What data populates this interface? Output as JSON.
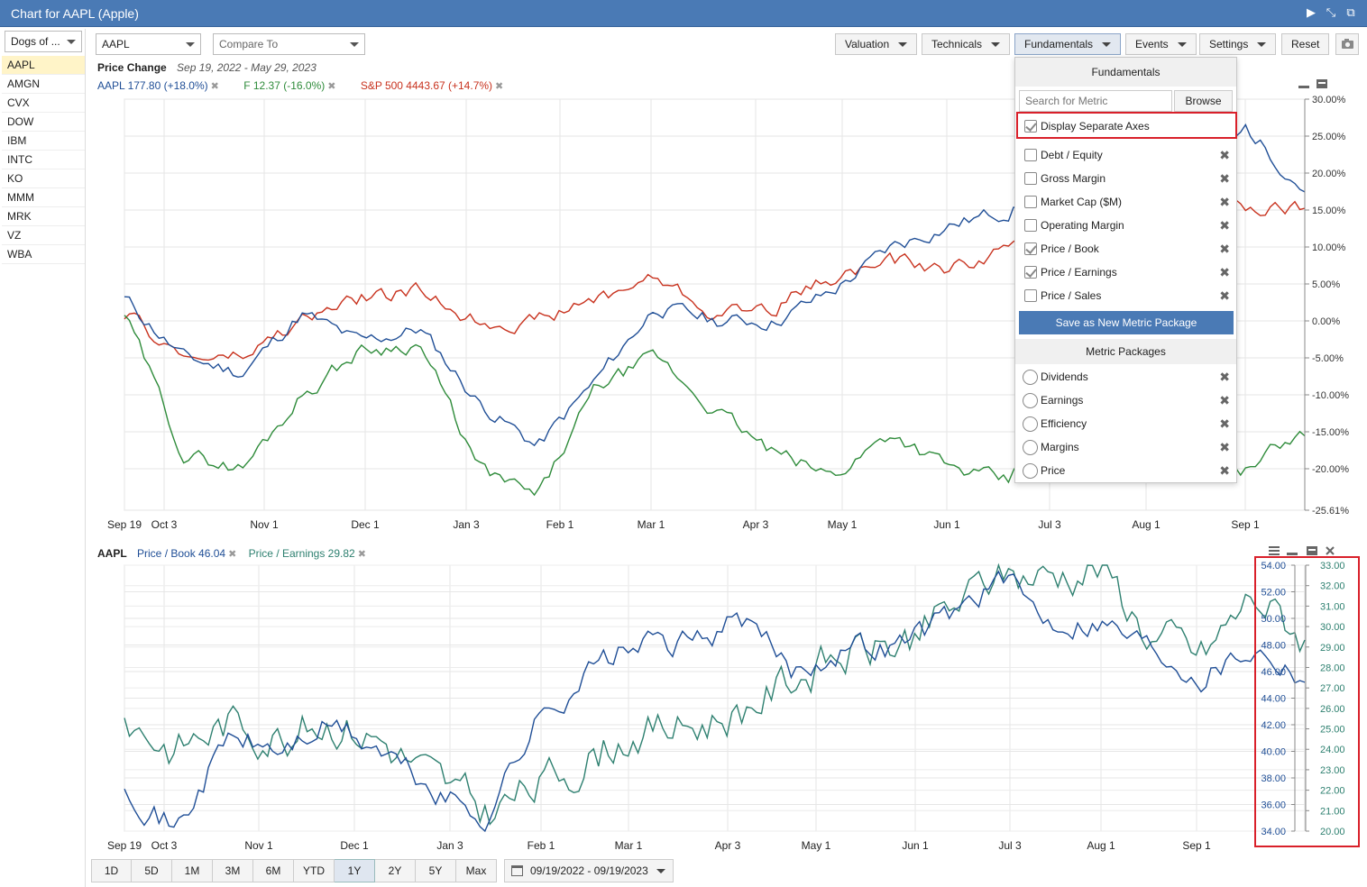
{
  "window": {
    "title": "Chart for AAPL (Apple)"
  },
  "sidebar": {
    "list_selector": "Dogs of ...",
    "items": [
      {
        "label": "AAPL"
      },
      {
        "label": "AMGN"
      },
      {
        "label": "CVX"
      },
      {
        "label": "DOW"
      },
      {
        "label": "IBM"
      },
      {
        "label": "INTC"
      },
      {
        "label": "KO"
      },
      {
        "label": "MMM"
      },
      {
        "label": "MRK"
      },
      {
        "label": "VZ"
      },
      {
        "label": "WBA"
      }
    ],
    "active": "AAPL"
  },
  "toolbar": {
    "symbol": "AAPL",
    "compare_placeholder": "Compare To",
    "valuation": "Valuation",
    "technicals": "Technicals",
    "fundamentals": "Fundamentals",
    "events": "Events",
    "settings": "Settings",
    "reset": "Reset",
    "camera_icon": "camera-icon"
  },
  "top_chart": {
    "title": "Price Change",
    "date_range": "Sep 19, 2022 - May 29, 2023",
    "legend": [
      {
        "text": "AAPL 177.80 (+18.0%)",
        "color": "#1f4e96"
      },
      {
        "text": "F 12.37 (-16.0%)",
        "color": "#2e8b3a"
      },
      {
        "text": "S&P 500 4443.67 (+14.7%)",
        "color": "#c8321e"
      }
    ],
    "y_ticks": [
      "30.00%",
      "25.00%",
      "20.00%",
      "15.00%",
      "10.00%",
      "5.00%",
      "0.00%",
      "-5.00%",
      "-10.00%",
      "-15.00%",
      "-20.00%",
      "-25.61%"
    ],
    "x_ticks": [
      "Sep 19",
      "Oct 3",
      "Nov 1",
      "Dec 1",
      "Jan 3",
      "Feb 1",
      "Mar 1",
      "Apr 3",
      "May 1",
      "Jun 1",
      "Jul 3",
      "Aug 1",
      "Sep 1"
    ]
  },
  "bottom_chart": {
    "symbol": "AAPL",
    "legend": [
      {
        "text": "Price / Book 46.04",
        "color": "#1f4e96"
      },
      {
        "text": "Price / Earnings 29.82",
        "color": "#2e8070"
      }
    ],
    "y_ticks_left": [
      "54.00",
      "52.00",
      "50.00",
      "48.00",
      "46.00",
      "44.00",
      "42.00",
      "40.00",
      "38.00",
      "36.00",
      "34.00"
    ],
    "y_ticks_right": [
      "33.00",
      "32.00",
      "31.00",
      "30.00",
      "29.00",
      "28.00",
      "27.00",
      "26.00",
      "25.00",
      "24.00",
      "23.00",
      "22.00",
      "21.00",
      "20.00"
    ],
    "x_ticks": [
      "Sep 19",
      "Oct 3",
      "Nov 1",
      "Dec 1",
      "Jan 3",
      "Feb 1",
      "Mar 1",
      "Apr 3",
      "May 1",
      "Jun 1",
      "Jul 3",
      "Aug 1",
      "Sep 1"
    ]
  },
  "fundamentals_menu": {
    "header": "Fundamentals",
    "search_placeholder": "Search for Metric",
    "browse": "Browse",
    "display_separate_axes": "Display Separate Axes",
    "metrics": [
      {
        "label": "Debt / Equity",
        "checked": false
      },
      {
        "label": "Gross Margin",
        "checked": false
      },
      {
        "label": "Market Cap ($M)",
        "checked": false
      },
      {
        "label": "Operating Margin",
        "checked": false
      },
      {
        "label": "Price / Book",
        "checked": true
      },
      {
        "label": "Price / Earnings",
        "checked": true
      },
      {
        "label": "Price / Sales",
        "checked": false
      }
    ],
    "save_button": "Save as New Metric Package",
    "packages_header": "Metric Packages",
    "packages": [
      {
        "label": "Dividends"
      },
      {
        "label": "Earnings"
      },
      {
        "label": "Efficiency"
      },
      {
        "label": "Margins"
      },
      {
        "label": "Price"
      }
    ]
  },
  "range_buttons": [
    "1D",
    "5D",
    "1M",
    "3M",
    "6M",
    "YTD",
    "1Y",
    "2Y",
    "5Y",
    "Max"
  ],
  "range_active": "1Y",
  "date_selector": "09/19/2022 - 09/19/2023",
  "colors": {
    "accent": "#4a7ab5",
    "highlight": "#d9202a"
  }
}
